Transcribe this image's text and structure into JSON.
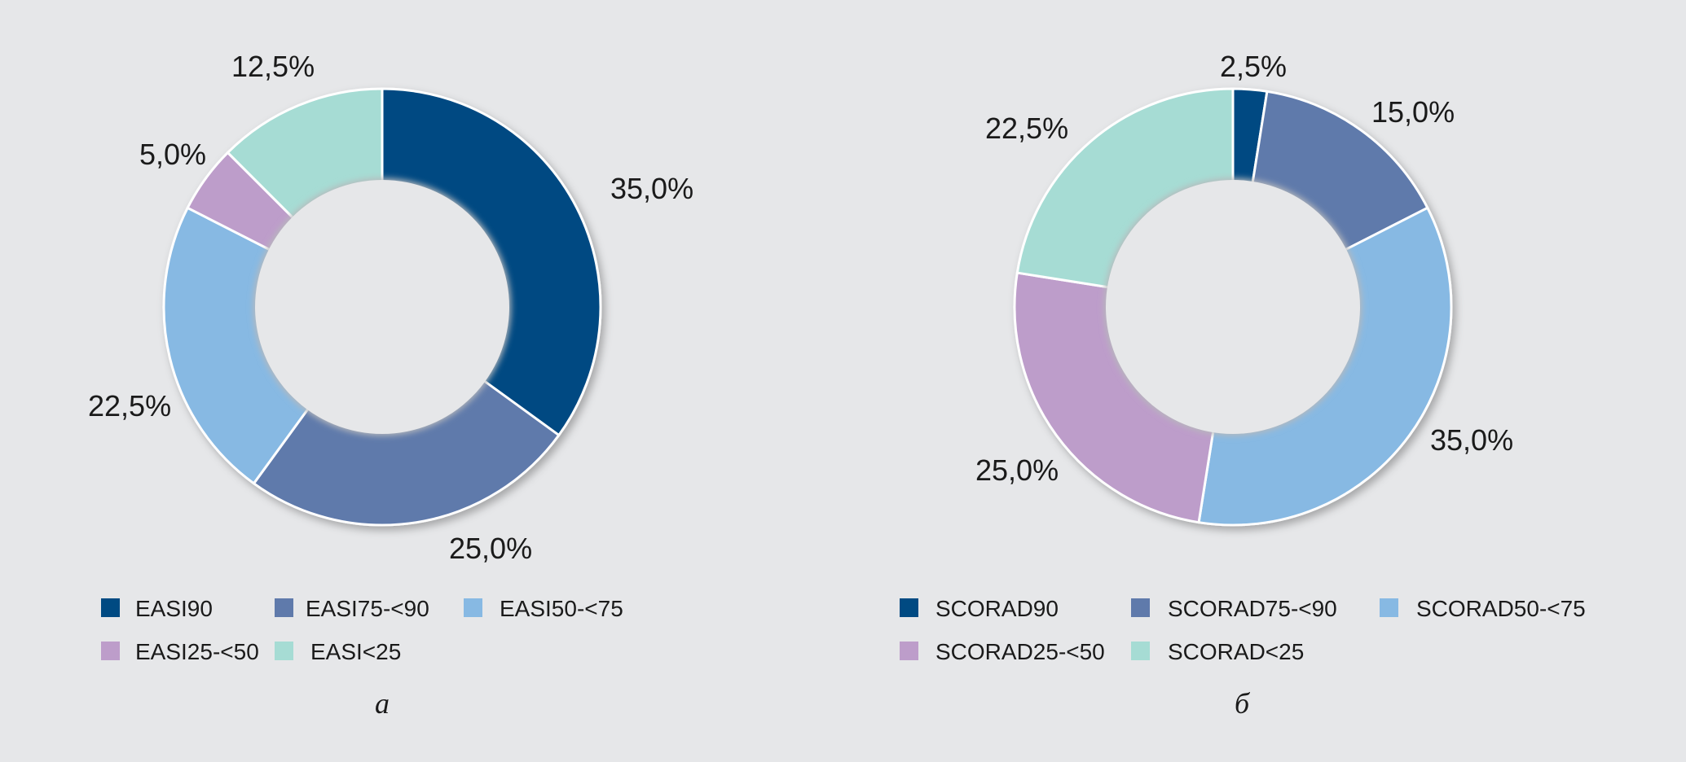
{
  "chart_data": [
    {
      "type": "pie",
      "variant": "donut",
      "caption": "а",
      "categories": [
        "EASI90",
        "EASI75-<90",
        "EASI50-<75",
        "EASI25-<50",
        "EASI<25"
      ],
      "values": [
        35.0,
        25.0,
        22.5,
        5.0,
        12.5
      ],
      "value_labels": [
        "35,0%",
        "25,0%",
        "22,5%",
        "5,0%",
        "12,5%"
      ],
      "colors": [
        "#004a82",
        "#5f7aab",
        "#87b9e3",
        "#bd9dca",
        "#a6dcd4"
      ],
      "legend": [
        "EASI90",
        "EASI75-<90",
        "EASI50-<75",
        "EASI25-<50",
        "EASI<25"
      ],
      "legend_placement": "bottom"
    },
    {
      "type": "pie",
      "variant": "donut",
      "caption": "б",
      "categories": [
        "SCORAD90",
        "SCORAD75-<90",
        "SCORAD50-<75",
        "SCORAD25-<50",
        "SCORAD<25"
      ],
      "values": [
        2.5,
        15.0,
        35.0,
        25.0,
        22.5
      ],
      "value_labels": [
        "2,5%",
        "15,0%",
        "35,0%",
        "25,0%",
        "22,5%"
      ],
      "colors": [
        "#004a82",
        "#5f7aab",
        "#87b9e3",
        "#bd9dca",
        "#a6dcd4"
      ],
      "legend": [
        "SCORAD90",
        "SCORAD75-<90",
        "SCORAD50-<75",
        "SCORAD25-<50",
        "SCORAD<25"
      ],
      "legend_placement": "bottom"
    }
  ]
}
